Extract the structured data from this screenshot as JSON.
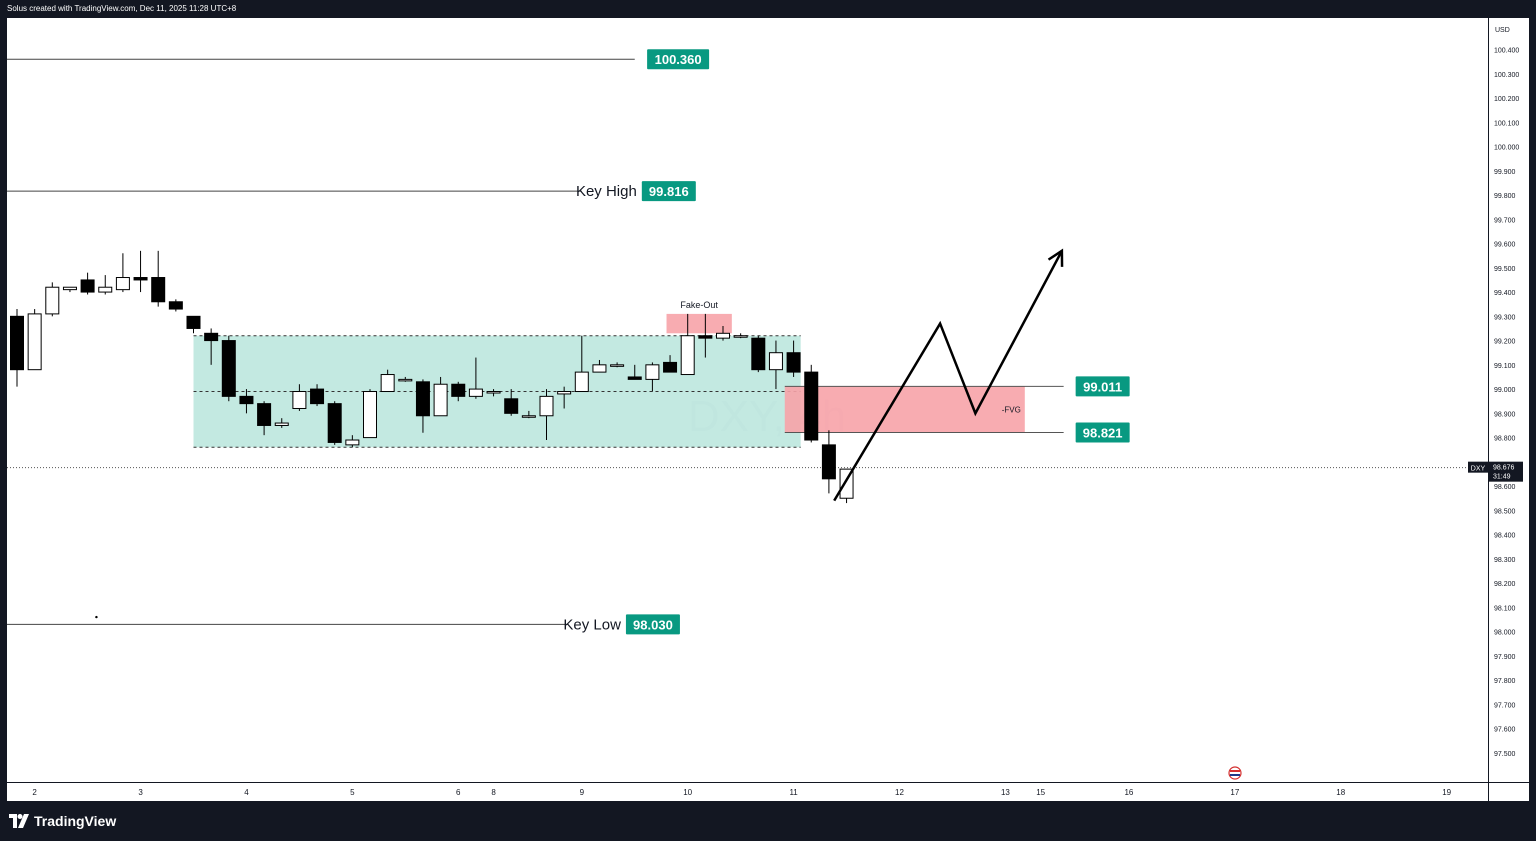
{
  "header": {
    "credit": "Solus created with TradingView.com, Dec 11, 2025 11:28 UTC+8"
  },
  "footer": {
    "brand": "TradingView"
  },
  "chart_data": {
    "type": "candlestick",
    "symbol": "DXY",
    "watermark": "DXY, 4h",
    "currency": "USD",
    "ylim": [
      97.38,
      100.53
    ],
    "price_ticks": [
      "100.400",
      "100.300",
      "100.200",
      "100.100",
      "100.000",
      "99.900",
      "99.800",
      "99.700",
      "99.600",
      "99.500",
      "99.400",
      "99.300",
      "99.200",
      "99.100",
      "99.000",
      "98.900",
      "98.800",
      "98.700",
      "98.600",
      "98.500",
      "98.400",
      "98.300",
      "98.200",
      "98.100",
      "98.000",
      "97.900",
      "97.800",
      "97.700",
      "97.600",
      "97.500"
    ],
    "time_ticks": [
      {
        "label": "2",
        "bar": 1
      },
      {
        "label": "3",
        "bar": 7
      },
      {
        "label": "4",
        "bar": 13
      },
      {
        "label": "5",
        "bar": 19
      },
      {
        "label": "6",
        "bar": 25
      },
      {
        "label": "8",
        "bar": 27
      },
      {
        "label": "9",
        "bar": 32
      },
      {
        "label": "10",
        "bar": 38
      },
      {
        "label": "11",
        "bar": 44
      },
      {
        "label": "12",
        "bar": 50
      },
      {
        "label": "13",
        "bar": 56
      },
      {
        "label": "15",
        "bar": 58
      },
      {
        "label": "16",
        "bar": 63
      },
      {
        "label": "17",
        "bar": 69
      },
      {
        "label": "18",
        "bar": 75
      },
      {
        "label": "19",
        "bar": 81
      }
    ],
    "candles": [
      {
        "o": 99.3,
        "h": 99.33,
        "l": 99.01,
        "c": 99.08
      },
      {
        "o": 99.08,
        "h": 99.33,
        "l": 99.08,
        "c": 99.31
      },
      {
        "o": 99.31,
        "h": 99.44,
        "l": 99.3,
        "c": 99.42
      },
      {
        "o": 99.41,
        "h": 99.42,
        "l": 99.4,
        "c": 99.42
      },
      {
        "o": 99.45,
        "h": 99.48,
        "l": 99.39,
        "c": 99.4
      },
      {
        "o": 99.4,
        "h": 99.47,
        "l": 99.39,
        "c": 99.42
      },
      {
        "o": 99.41,
        "h": 99.56,
        "l": 99.4,
        "c": 99.46
      },
      {
        "o": 99.46,
        "h": 99.57,
        "l": 99.4,
        "c": 99.45
      },
      {
        "o": 99.46,
        "h": 99.57,
        "l": 99.34,
        "c": 99.36
      },
      {
        "o": 99.36,
        "h": 99.37,
        "l": 99.32,
        "c": 99.33
      },
      {
        "o": 99.3,
        "h": 99.3,
        "l": 99.23,
        "c": 99.25
      },
      {
        "o": 99.23,
        "h": 99.25,
        "l": 99.1,
        "c": 99.2
      },
      {
        "o": 99.2,
        "h": 99.22,
        "l": 98.95,
        "c": 98.97
      },
      {
        "o": 98.97,
        "h": 99.0,
        "l": 98.9,
        "c": 98.94
      },
      {
        "o": 98.94,
        "h": 98.95,
        "l": 98.81,
        "c": 98.85
      },
      {
        "o": 98.85,
        "h": 98.88,
        "l": 98.84,
        "c": 98.86
      },
      {
        "o": 98.92,
        "h": 99.02,
        "l": 98.91,
        "c": 98.99
      },
      {
        "o": 99.0,
        "h": 99.02,
        "l": 98.93,
        "c": 98.94
      },
      {
        "o": 98.94,
        "h": 98.95,
        "l": 98.77,
        "c": 98.78
      },
      {
        "o": 98.77,
        "h": 98.81,
        "l": 98.76,
        "c": 98.79
      },
      {
        "o": 98.8,
        "h": 99.0,
        "l": 98.8,
        "c": 98.99
      },
      {
        "o": 98.99,
        "h": 99.08,
        "l": 98.99,
        "c": 99.06
      },
      {
        "o": 99.04,
        "h": 99.05,
        "l": 99.03,
        "c": 99.04
      },
      {
        "o": 99.03,
        "h": 99.04,
        "l": 98.82,
        "c": 98.89
      },
      {
        "o": 98.89,
        "h": 99.05,
        "l": 98.89,
        "c": 99.02
      },
      {
        "o": 99.02,
        "h": 99.03,
        "l": 98.95,
        "c": 98.97
      },
      {
        "o": 98.97,
        "h": 99.13,
        "l": 98.96,
        "c": 99.0
      },
      {
        "o": 98.99,
        "h": 99.0,
        "l": 98.97,
        "c": 98.99
      },
      {
        "o": 98.96,
        "h": 99.0,
        "l": 98.89,
        "c": 98.9
      },
      {
        "o": 98.89,
        "h": 98.91,
        "l": 98.88,
        "c": 98.89
      },
      {
        "o": 98.89,
        "h": 99.0,
        "l": 98.79,
        "c": 98.97
      },
      {
        "o": 98.98,
        "h": 99.01,
        "l": 98.92,
        "c": 98.99
      },
      {
        "o": 98.99,
        "h": 99.22,
        "l": 98.99,
        "c": 99.07
      },
      {
        "o": 99.07,
        "h": 99.12,
        "l": 99.07,
        "c": 99.1
      },
      {
        "o": 99.1,
        "h": 99.11,
        "l": 99.09,
        "c": 99.1
      },
      {
        "o": 99.05,
        "h": 99.1,
        "l": 99.04,
        "c": 99.04
      },
      {
        "o": 99.04,
        "h": 99.11,
        "l": 98.99,
        "c": 99.1
      },
      {
        "o": 99.11,
        "h": 99.14,
        "l": 99.07,
        "c": 99.07
      },
      {
        "o": 99.06,
        "h": 99.31,
        "l": 99.06,
        "c": 99.22
      },
      {
        "o": 99.22,
        "h": 99.31,
        "l": 99.13,
        "c": 99.21
      },
      {
        "o": 99.21,
        "h": 99.26,
        "l": 99.2,
        "c": 99.23
      },
      {
        "o": 99.22,
        "h": 99.23,
        "l": 99.21,
        "c": 99.22
      },
      {
        "o": 99.21,
        "h": 99.22,
        "l": 99.07,
        "c": 99.08
      },
      {
        "o": 99.08,
        "h": 99.2,
        "l": 99.0,
        "c": 99.15
      },
      {
        "o": 99.15,
        "h": 99.2,
        "l": 99.05,
        "c": 99.07
      },
      {
        "o": 99.07,
        "h": 99.1,
        "l": 98.78,
        "c": 98.79
      },
      {
        "o": 98.77,
        "h": 98.83,
        "l": 98.57,
        "c": 98.63
      },
      {
        "o": 98.55,
        "h": 98.67,
        "l": 98.53,
        "c": 98.67
      }
    ],
    "last_price": {
      "label": "DXY",
      "value": "98.676",
      "countdown": "31:49",
      "price": 98.676
    },
    "levels": [
      {
        "price": 100.36,
        "value": "100.360",
        "text": "",
        "line_end_bar": 35.0,
        "badge_bar": 37.4
      },
      {
        "price": 99.816,
        "value": "99.816",
        "text": "Key High",
        "line_end_bar": 32.0,
        "badge_bar": 37.1
      },
      {
        "price": 98.03,
        "value": "98.030",
        "text": "Key Low",
        "line_end_bar": 31.2,
        "badge_bar": 36.2
      }
    ],
    "range_box": {
      "from_bar": 10.0,
      "to_bar": 44.4,
      "top": 99.22,
      "bottom": 98.76,
      "mid": 98.99,
      "color": "#b9e5dc"
    },
    "fake_out": {
      "label": "Fake-Out",
      "from_bar": 36.8,
      "to_bar": 40.5,
      "top": 99.31,
      "bottom": 99.23,
      "color": "#f7a3a8"
    },
    "fvg": {
      "label": "-FVG",
      "from_bar": 43.5,
      "to_bar": 57.1,
      "top": 99.011,
      "bottom": 98.821,
      "line_end_bar": 59.3,
      "top_value": "99.011",
      "bottom_value": "98.821",
      "color": "#f7a3a8"
    },
    "projection": [
      {
        "bar": 46.3,
        "price": 98.54
      },
      {
        "bar": 52.3,
        "price": 99.27
      },
      {
        "bar": 54.3,
        "price": 98.9
      },
      {
        "bar": 59.2,
        "price": 99.57
      }
    ],
    "dot": {
      "bar": 4.5,
      "price": 98.06
    }
  }
}
